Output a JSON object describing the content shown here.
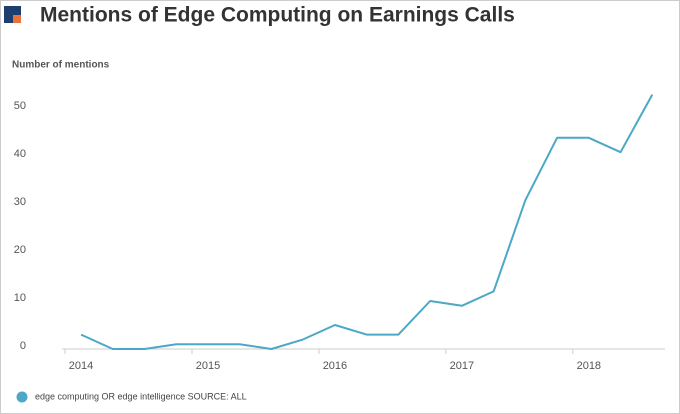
{
  "chart_data": {
    "type": "line",
    "title": "Mentions of Edge Computing on Earnings Calls",
    "y_label": "Number of mentions",
    "x": [
      2014,
      2014.25,
      2014.5,
      2014.75,
      2015,
      2015.25,
      2015.5,
      2015.75,
      2016,
      2016.25,
      2016.5,
      2016.75,
      2017,
      2017.25,
      2017.5,
      2017.75,
      2018,
      2018.25,
      2018.5
    ],
    "series": [
      {
        "name": "edge computing OR edge intelligence SOURCE: ALL",
        "color": "#4ba8c6",
        "values": [
          3,
          0,
          0,
          1,
          1,
          1,
          0,
          2,
          5,
          3,
          3,
          10,
          9,
          12,
          31,
          44,
          44,
          41,
          53
        ]
      }
    ],
    "xlim": [
      2013.85,
      2018.6
    ],
    "xticks": [
      2014,
      2015,
      2016,
      2017,
      2018
    ],
    "ylim": [
      0,
      55
    ],
    "yticks": [
      0,
      10,
      20,
      30,
      40,
      50
    ]
  }
}
